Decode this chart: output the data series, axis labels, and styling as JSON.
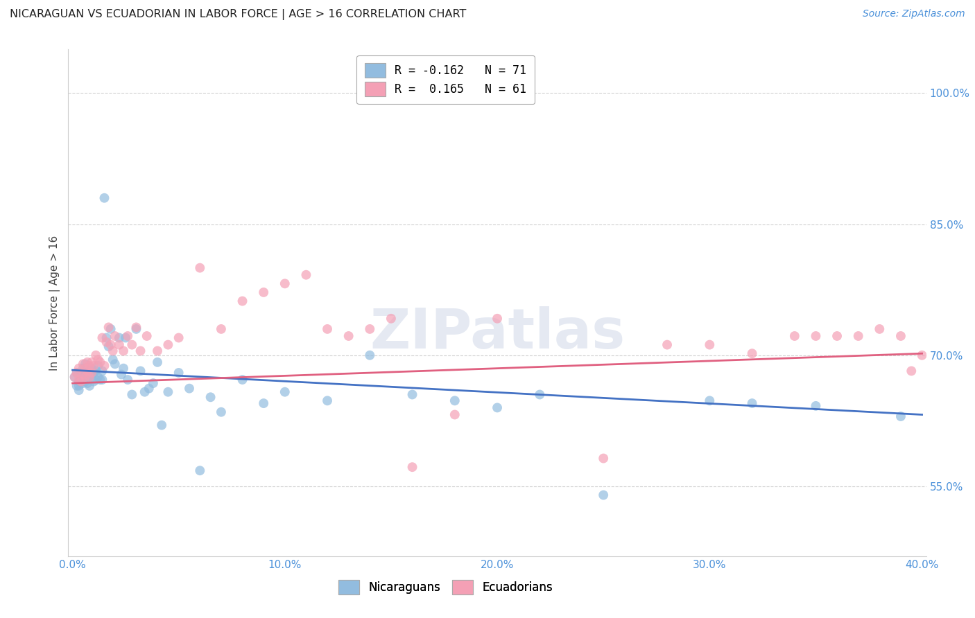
{
  "title": "NICARAGUAN VS ECUADORIAN IN LABOR FORCE | AGE > 16 CORRELATION CHART",
  "source": "Source: ZipAtlas.com",
  "ylabel": "In Labor Force | Age > 16",
  "xlabel_ticks": [
    "0.0%",
    "",
    "",
    "",
    "",
    "10.0%",
    "",
    "",
    "",
    "",
    "20.0%",
    "",
    "",
    "",
    "",
    "30.0%",
    "",
    "",
    "",
    "",
    "40.0%"
  ],
  "xlabel_values": [
    0.0,
    0.02,
    0.04,
    0.06,
    0.08,
    0.1,
    0.12,
    0.14,
    0.16,
    0.18,
    0.2,
    0.22,
    0.24,
    0.26,
    0.28,
    0.3,
    0.32,
    0.34,
    0.36,
    0.38,
    0.4
  ],
  "xlabel_show": [
    0.0,
    0.1,
    0.2,
    0.3,
    0.4
  ],
  "xlabel_show_labels": [
    "0.0%",
    "10.0%",
    "20.0%",
    "30.0%",
    "40.0%"
  ],
  "ylabel_ticks": [
    "55.0%",
    "70.0%",
    "85.0%",
    "100.0%"
  ],
  "ylabel_values": [
    0.55,
    0.7,
    0.85,
    1.0
  ],
  "xlim": [
    -0.002,
    0.402
  ],
  "ylim": [
    0.47,
    1.05
  ],
  "blue_color": "#92bcdf",
  "pink_color": "#f4a0b5",
  "blue_line_color": "#4472c4",
  "pink_line_color": "#e06080",
  "legend_blue_label": "R = -0.162   N = 71",
  "legend_pink_label": "R =  0.165   N = 61",
  "watermark": "ZIPatlas",
  "legend_label_blue": "Nicaraguans",
  "legend_label_pink": "Ecuadorians",
  "blue_line_x0": 0.0,
  "blue_line_x1": 0.4,
  "blue_line_y0": 0.683,
  "blue_line_y1": 0.632,
  "pink_line_x0": 0.0,
  "pink_line_x1": 0.4,
  "pink_line_y0": 0.668,
  "pink_line_y1": 0.702,
  "blue_scatter_x": [
    0.001,
    0.002,
    0.002,
    0.003,
    0.003,
    0.003,
    0.004,
    0.004,
    0.004,
    0.005,
    0.005,
    0.005,
    0.006,
    0.006,
    0.006,
    0.007,
    0.007,
    0.007,
    0.008,
    0.008,
    0.008,
    0.009,
    0.009,
    0.01,
    0.01,
    0.011,
    0.011,
    0.012,
    0.012,
    0.013,
    0.014,
    0.014,
    0.015,
    0.016,
    0.017,
    0.018,
    0.019,
    0.02,
    0.022,
    0.023,
    0.024,
    0.025,
    0.026,
    0.028,
    0.03,
    0.032,
    0.034,
    0.036,
    0.038,
    0.04,
    0.042,
    0.045,
    0.05,
    0.055,
    0.06,
    0.065,
    0.07,
    0.08,
    0.09,
    0.1,
    0.12,
    0.14,
    0.16,
    0.18,
    0.2,
    0.22,
    0.25,
    0.3,
    0.32,
    0.35,
    0.39
  ],
  "blue_scatter_y": [
    0.675,
    0.68,
    0.665,
    0.67,
    0.665,
    0.66,
    0.68,
    0.675,
    0.67,
    0.685,
    0.675,
    0.668,
    0.69,
    0.68,
    0.67,
    0.685,
    0.675,
    0.668,
    0.685,
    0.675,
    0.665,
    0.685,
    0.678,
    0.68,
    0.67,
    0.682,
    0.672,
    0.688,
    0.675,
    0.672,
    0.682,
    0.672,
    0.88,
    0.72,
    0.71,
    0.73,
    0.695,
    0.69,
    0.72,
    0.678,
    0.685,
    0.72,
    0.672,
    0.655,
    0.73,
    0.682,
    0.658,
    0.662,
    0.668,
    0.692,
    0.62,
    0.658,
    0.68,
    0.662,
    0.568,
    0.652,
    0.635,
    0.672,
    0.645,
    0.658,
    0.648,
    0.7,
    0.655,
    0.648,
    0.64,
    0.655,
    0.54,
    0.648,
    0.645,
    0.642,
    0.63
  ],
  "pink_scatter_x": [
    0.001,
    0.002,
    0.003,
    0.003,
    0.004,
    0.005,
    0.005,
    0.006,
    0.006,
    0.007,
    0.007,
    0.008,
    0.008,
    0.009,
    0.009,
    0.01,
    0.011,
    0.012,
    0.013,
    0.014,
    0.015,
    0.016,
    0.017,
    0.018,
    0.019,
    0.02,
    0.022,
    0.024,
    0.026,
    0.028,
    0.03,
    0.032,
    0.035,
    0.04,
    0.045,
    0.05,
    0.06,
    0.07,
    0.08,
    0.09,
    0.1,
    0.11,
    0.12,
    0.13,
    0.14,
    0.15,
    0.16,
    0.18,
    0.2,
    0.25,
    0.28,
    0.3,
    0.32,
    0.34,
    0.35,
    0.36,
    0.37,
    0.38,
    0.39,
    0.395,
    0.4
  ],
  "pink_scatter_y": [
    0.675,
    0.68,
    0.672,
    0.685,
    0.67,
    0.69,
    0.678,
    0.685,
    0.675,
    0.692,
    0.682,
    0.688,
    0.675,
    0.692,
    0.68,
    0.688,
    0.7,
    0.695,
    0.692,
    0.72,
    0.688,
    0.715,
    0.732,
    0.712,
    0.705,
    0.722,
    0.712,
    0.705,
    0.722,
    0.712,
    0.732,
    0.705,
    0.722,
    0.705,
    0.712,
    0.72,
    0.8,
    0.73,
    0.762,
    0.772,
    0.782,
    0.792,
    0.73,
    0.722,
    0.73,
    0.742,
    0.572,
    0.632,
    0.742,
    0.582,
    0.712,
    0.712,
    0.702,
    0.722,
    0.722,
    0.722,
    0.722,
    0.73,
    0.722,
    0.682,
    0.7
  ]
}
